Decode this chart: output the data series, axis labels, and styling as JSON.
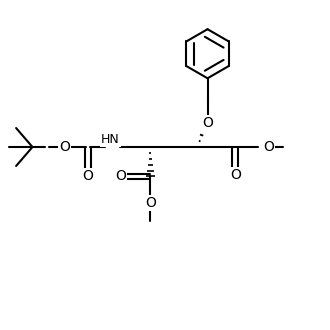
{
  "background_color": "#ffffff",
  "line_color": "#000000",
  "line_width": 1.5,
  "font_size": 9,
  "figsize": [
    3.3,
    3.3
  ],
  "dpi": 100,
  "xlim": [
    0,
    10
  ],
  "ylim": [
    0,
    10
  ]
}
